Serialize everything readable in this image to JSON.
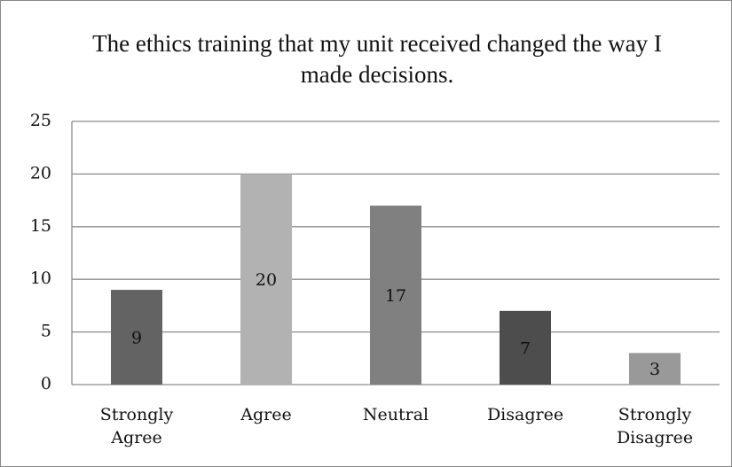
{
  "chart_data": {
    "type": "bar",
    "title": "The ethics training that my unit received changed the way I made decisions.",
    "categories": [
      "Strongly Agree",
      "Agree",
      "Neutral",
      "Disagree",
      "Strongly Disagree"
    ],
    "values": [
      9,
      20,
      17,
      7,
      3
    ],
    "colors": [
      "#636363",
      "#b2b2b2",
      "#808080",
      "#4d4d4d",
      "#999999"
    ],
    "ylim": [
      0,
      25
    ],
    "yticks": [
      0,
      5,
      10,
      15,
      20,
      25
    ],
    "grid": true
  }
}
